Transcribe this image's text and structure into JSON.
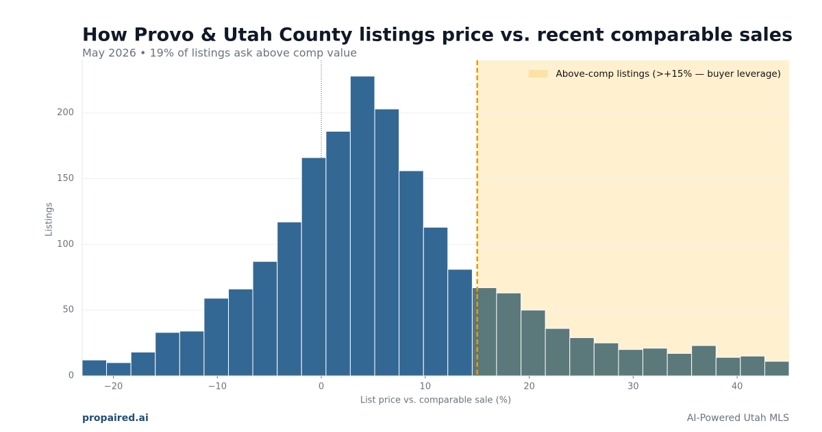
{
  "chart_data": {
    "type": "histogram",
    "title": "How Provo & Utah County listings price vs. recent comparable sales",
    "subtitle": "May 2026 • 19% of listings ask above comp value",
    "x_label": "List price vs. comparable sale (%)",
    "y_label": "Listings",
    "bins": [
      -23,
      -20.66,
      -18.31,
      -15.97,
      -13.62,
      -11.28,
      -8.93,
      -6.59,
      -4.24,
      -1.9,
      0.45,
      2.79,
      5.14,
      7.48,
      9.83,
      12.17,
      14.52,
      16.86,
      19.21,
      21.55,
      23.9,
      26.24,
      28.59,
      30.93,
      33.28,
      35.62,
      37.97,
      40.31,
      42.66,
      45
    ],
    "counts": [
      12,
      10,
      18,
      33,
      34,
      59,
      66,
      87,
      117,
      166,
      186,
      228,
      203,
      156,
      113,
      81,
      67,
      63,
      50,
      36,
      29,
      25,
      20,
      21,
      17,
      23,
      14,
      15,
      11
    ],
    "color": "#336895",
    "highlight": {
      "start": 15,
      "label": "Above-comp listings (>+15% — buyer leverage)",
      "color": "#fff0d0",
      "line_color": "#e69b00",
      "bar_color": "#5b787b"
    },
    "reference_line": 0,
    "xlim": [
      -23,
      45
    ],
    "ylim": [
      0,
      240
    ],
    "xticks": [
      {
        "value": -20,
        "label": "−20"
      },
      {
        "value": -10,
        "label": "−10"
      },
      0,
      10,
      20,
      30,
      40
    ],
    "yticks": [
      0,
      50,
      100,
      150,
      200
    ],
    "grid": true,
    "legend": "upper right",
    "footer_left": "propaired.ai",
    "footer_right": "AI-Powered Utah MLS"
  }
}
